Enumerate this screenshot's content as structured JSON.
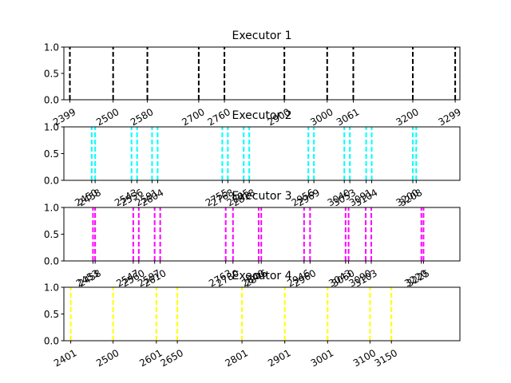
{
  "chart_data": [
    {
      "type": "event-lines",
      "title": "Executor 1",
      "color": "#000000",
      "xlim": [
        2385,
        3310
      ],
      "ylim": [
        0.0,
        1.0
      ],
      "yticks": [
        "0.0",
        "0.5",
        "1.0"
      ],
      "x": [
        2399,
        2500,
        2580,
        2700,
        2760,
        2900,
        3000,
        3061,
        3200,
        3299
      ],
      "xtick_labels": [
        "2399",
        "2500",
        "2580",
        "2700",
        "2760",
        "2900",
        "3000",
        "3061",
        "3200",
        "3299"
      ]
    },
    {
      "type": "event-lines",
      "title": "Executor 2",
      "color": "#00ffff",
      "xlim": [
        2385,
        3310
      ],
      "ylim": [
        0.0,
        1.0
      ],
      "yticks": [
        "0.0",
        "0.5",
        "1.0"
      ],
      "x": [
        2450,
        2458,
        2543,
        2556,
        2591,
        2604,
        2755,
        2768,
        2805,
        2818,
        2956,
        2969,
        3040,
        3053,
        3091,
        3104,
        3200,
        3208
      ],
      "xtick_labels": [
        "2450",
        "2458",
        "2543",
        "2556",
        "2591",
        "2604",
        "2755",
        "2768",
        "2805",
        "2818",
        "2956",
        "2969",
        "3040",
        "3053",
        "3091",
        "3104",
        "3200",
        "3208"
      ]
    },
    {
      "type": "event-lines",
      "title": "Executor 3",
      "color": "#ff00ff",
      "xlim": [
        2385,
        3310
      ],
      "ylim": [
        0.0,
        1.0
      ],
      "yticks": [
        "0.0",
        "0.5",
        "1.0"
      ],
      "x": [
        2453,
        2458,
        2547,
        2560,
        2597,
        2610,
        2763,
        2780,
        2840,
        2846,
        2946,
        2960,
        3043,
        3050,
        3090,
        3103,
        3220,
        3225
      ],
      "xtick_labels": [
        "2453",
        "2458",
        "2547",
        "2560",
        "2597",
        "2610",
        "2763",
        "2780",
        "2840",
        "2846",
        "2946",
        "2960",
        "3043",
        "3050",
        "3090",
        "3103",
        "3220",
        "3225"
      ]
    },
    {
      "type": "event-lines",
      "title": "Executor 4",
      "color": "#ffff00",
      "xlim": [
        2385,
        3310
      ],
      "ylim": [
        0.0,
        1.0
      ],
      "yticks": [
        "0.0",
        "0.5",
        "1.0"
      ],
      "x": [
        2401,
        2500,
        2601,
        2650,
        2801,
        2901,
        3001,
        3100,
        3150
      ],
      "xtick_labels": [
        "2401",
        "2500",
        "2601",
        "2650",
        "2801",
        "2901",
        "3001",
        "3100",
        "3150"
      ]
    }
  ]
}
